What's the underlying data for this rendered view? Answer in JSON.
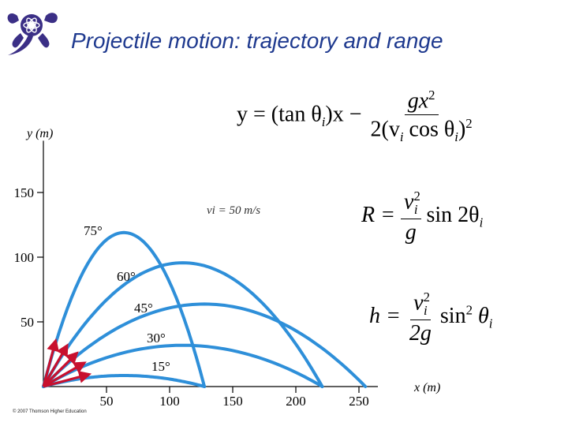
{
  "slide": {
    "title": "Projectile motion: trajectory and range",
    "copyright": "© 2007 Thomson Higher Education"
  },
  "equations": {
    "trajectory": {
      "lhs": "y = (tan θ",
      "sub_i": "i",
      "mid": ")x −",
      "num": "gx",
      "num_sup": "2",
      "den_pre": "2(v",
      "den_sub": "i",
      "den_mid": " cos θ",
      "den_sub2": "i",
      "den_post": ")",
      "den_sup": "2"
    },
    "range": {
      "lhs": "R =",
      "num": "v",
      "num_sub": "i",
      "num_sup": "2",
      "den": "g",
      "rhs": "sin 2θ",
      "rhs_sub": "i"
    },
    "height": {
      "lhs": "h =",
      "num": "v",
      "num_sub": "i",
      "num_sup": "2",
      "den": "2g",
      "rhs": "sin",
      "rhs_sup": "2",
      "rhs_post": " θ",
      "rhs_sub": "i"
    }
  },
  "chart_data": {
    "type": "line",
    "xlabel": "x (m)",
    "ylabel": "y (m)",
    "xlim": [
      0,
      265
    ],
    "ylim": [
      0,
      190
    ],
    "xticks": [
      50,
      100,
      150,
      200,
      250
    ],
    "yticks": [
      50,
      100,
      150
    ],
    "annotation": "vi = 50 m/s",
    "speed": 50,
    "g": 9.8,
    "colors": {
      "curve": "#2e8fd9",
      "arrow": "#c8102e",
      "axis": "#000000"
    },
    "series": [
      {
        "name": "15°",
        "angle": 15
      },
      {
        "name": "30°",
        "angle": 30
      },
      {
        "name": "45°",
        "angle": 45
      },
      {
        "name": "60°",
        "angle": 60
      },
      {
        "name": "75°",
        "angle": 75
      }
    ]
  }
}
